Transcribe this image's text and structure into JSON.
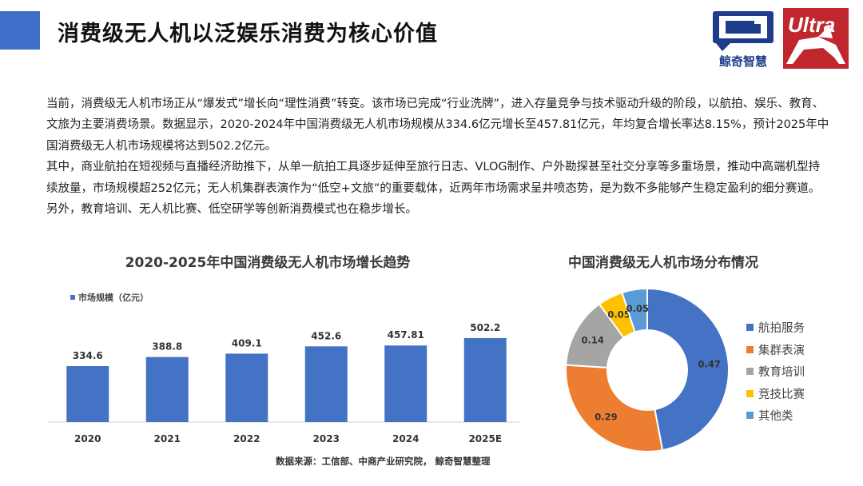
{
  "header": {
    "title": "消费级无人机以泛娱乐消费为核心价值",
    "logo_main_name": "鲸奇智慧",
    "logo_secondary_text": "Ultra"
  },
  "body": {
    "paragraph1": "当前，消费级无人机市场正从“爆发式”增长向“理性消费”转变。该市场已完成“行业洗牌”，进入存量竞争与技术驱动升级的阶段，以航拍、娱乐、教育、文旅为主要消费场景。数据显示，2020-2024年中国消费级无人机市场规模从334.6亿元增长至457.81亿元，年均复合增长率达8.15%，预计2025年中国消费级无人机市场规模将达到502.2亿元。",
    "paragraph2": "其中，商业航拍在短视频与直播经济助推下，从单一航拍工具逐步延伸至旅行日志、VLOG制作、户外勘探甚至社交分享等多重场景，推动中高端机型持续放量，市场规模超252亿元；无人机集群表演作为“低空+文旅”的重要载体，近两年市场需求呈井喷态势，是为数不多能够产生稳定盈利的细分赛道。另外，教育培训、无人机比赛、低空研学等创新消费模式也在稳步增长。"
  },
  "source_note": "数据来源：工信部、中商产业研究院，  鲸奇智慧整理",
  "colors": {
    "accent": "#4472c4",
    "orange": "#ed7d31",
    "gray": "#a5a5a5",
    "gold": "#ffc000",
    "lightblue": "#5b9bd5"
  },
  "chart_data": [
    {
      "type": "bar",
      "title": "2020-2025年中国消费级无人机市场增长趋势",
      "categories": [
        "2020",
        "2021",
        "2022",
        "2023",
        "2024",
        "2025E"
      ],
      "series": [
        {
          "name": "市场规模（亿元）",
          "values": [
            334.6,
            388.8,
            409.1,
            452.6,
            457.81,
            502.2
          ]
        }
      ],
      "value_labels": [
        "334.6",
        "388.8",
        "409.1",
        "452.6",
        "457.81",
        "502.2"
      ],
      "ylim": [
        0,
        700
      ],
      "grid": false,
      "legend": "top-left",
      "color": "#4472c4"
    },
    {
      "type": "pie",
      "title": "中国消费级无人机市场分布情况",
      "donut": true,
      "legend": "right",
      "slices": [
        {
          "label": "航拍服务",
          "value": 0.47,
          "value_label": "0.47",
          "color": "#4472c4"
        },
        {
          "label": "集群表演",
          "value": 0.29,
          "value_label": "0.29",
          "color": "#ed7d31"
        },
        {
          "label": "教育培训",
          "value": 0.14,
          "value_label": "0.14",
          "color": "#a5a5a5"
        },
        {
          "label": "竞技比赛",
          "value": 0.05,
          "value_label": "0.05",
          "color": "#ffc000"
        },
        {
          "label": "其他类",
          "value": 0.05,
          "value_label": "0.05",
          "color": "#5b9bd5"
        }
      ]
    }
  ]
}
